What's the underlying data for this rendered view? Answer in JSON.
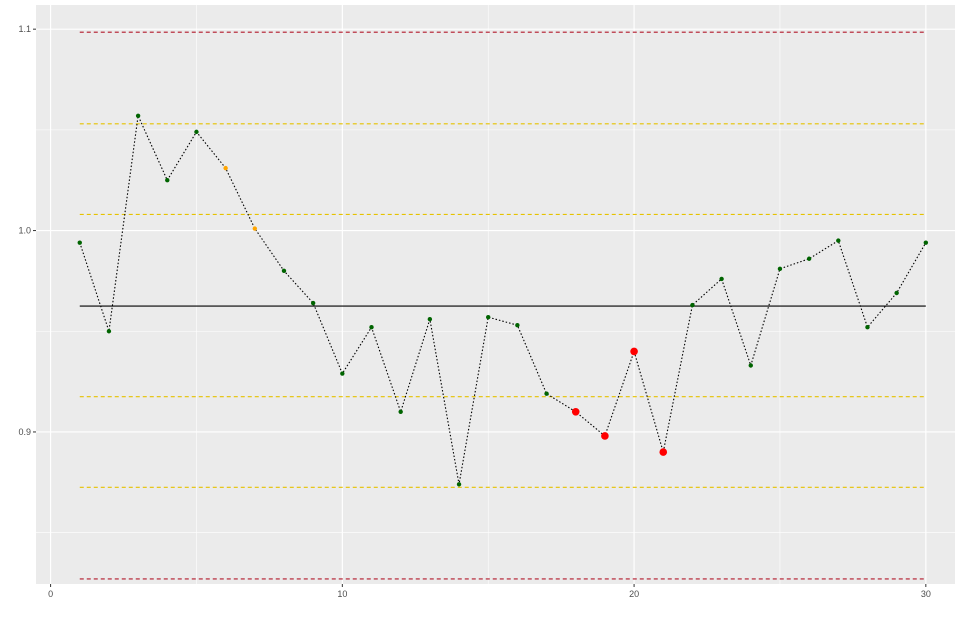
{
  "chart_data": {
    "type": "scatter",
    "title": "",
    "xlabel": "",
    "ylabel": "",
    "xlim": [
      -0.5,
      31.0
    ],
    "ylim": [
      0.8245,
      1.112
    ],
    "grid": true,
    "x_ticks": [
      0,
      10,
      20,
      30
    ],
    "x_tick_labels": [
      "0",
      "10",
      "20",
      "30"
    ],
    "y_ticks": [
      0.9,
      1.0,
      1.1
    ],
    "y_tick_labels": [
      "0.9",
      "1.0",
      "1.1"
    ],
    "x_minor_ticks": [
      5,
      15,
      25
    ],
    "y_minor_ticks": [
      0.85,
      0.95,
      1.05
    ],
    "series": [
      {
        "x": [
          1,
          2,
          3,
          4,
          5,
          6,
          7,
          8,
          9,
          10,
          11,
          12,
          13,
          14,
          15,
          16,
          17,
          18,
          19,
          20,
          21,
          22,
          23,
          24,
          25,
          26,
          27,
          28,
          29,
          30
        ],
        "y": [
          0.994,
          0.95,
          1.057,
          1.025,
          1.049,
          1.031,
          1.001,
          0.98,
          0.964,
          0.929,
          0.952,
          0.91,
          0.956,
          0.874,
          0.957,
          0.953,
          0.919,
          0.91,
          0.898,
          0.94,
          0.89,
          0.963,
          0.976,
          0.933,
          0.981,
          0.986,
          0.995,
          0.952,
          0.969,
          0.994
        ],
        "status": [
          "ok",
          "ok",
          "ok",
          "ok",
          "ok",
          "warn",
          "warn",
          "ok",
          "ok",
          "ok",
          "ok",
          "ok",
          "ok",
          "ok",
          "ok",
          "ok",
          "ok",
          "alert",
          "alert",
          "alert",
          "alert",
          "ok",
          "ok",
          "ok",
          "ok",
          "ok",
          "ok",
          "ok",
          "ok",
          "ok"
        ]
      }
    ],
    "reference_lines": [
      {
        "y": 1.0985,
        "style": "dashed",
        "color": "#b2182b"
      },
      {
        "y": 1.053,
        "style": "dashed",
        "color": "#e6c200"
      },
      {
        "y": 1.008,
        "style": "dashed",
        "color": "#e6c200"
      },
      {
        "y": 0.9625,
        "style": "solid",
        "color": "#000000"
      },
      {
        "y": 0.9175,
        "style": "dashed",
        "color": "#e6c200"
      },
      {
        "y": 0.8725,
        "style": "dashed",
        "color": "#e6c200"
      },
      {
        "y": 0.827,
        "style": "dashed",
        "color": "#b2182b"
      }
    ],
    "ref_x_range": [
      1,
      30
    ],
    "colors": {
      "panel": "#ebebeb",
      "grid_major": "#ffffff",
      "line": "#000000",
      "ok": "#006400",
      "warn": "#ffa500",
      "alert": "#ff0000",
      "tick_text": "#4d4d4d",
      "tick_mark": "#333333"
    }
  }
}
